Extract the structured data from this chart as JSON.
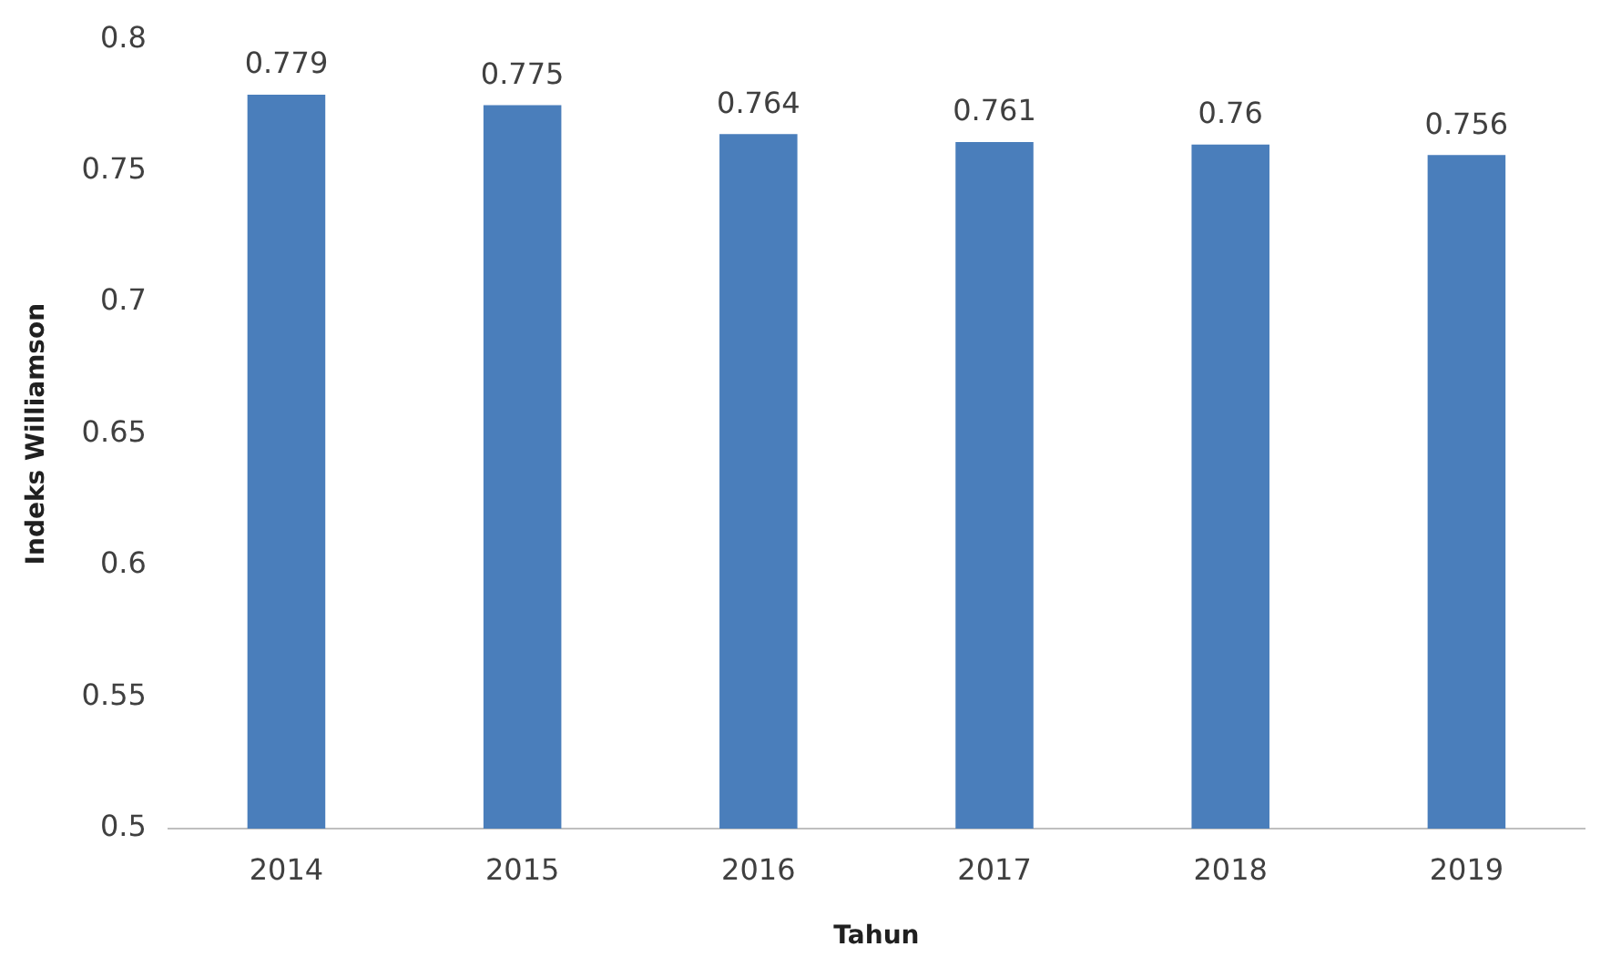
{
  "chart_data": {
    "type": "bar",
    "xlabel": "Tahun",
    "ylabel": "Indeks Williamson",
    "categories": [
      "2014",
      "2015",
      "2016",
      "2017",
      "2018",
      "2019"
    ],
    "values": [
      0.779,
      0.775,
      0.764,
      0.761,
      0.76,
      0.756
    ],
    "color": "#4a7ebb",
    "ylim": [
      0.5,
      0.8
    ],
    "yticks": [
      0.5,
      0.55,
      0.6,
      0.65,
      0.7,
      0.75,
      0.8
    ],
    "grid": false,
    "data_labels": true,
    "legend": false
  }
}
